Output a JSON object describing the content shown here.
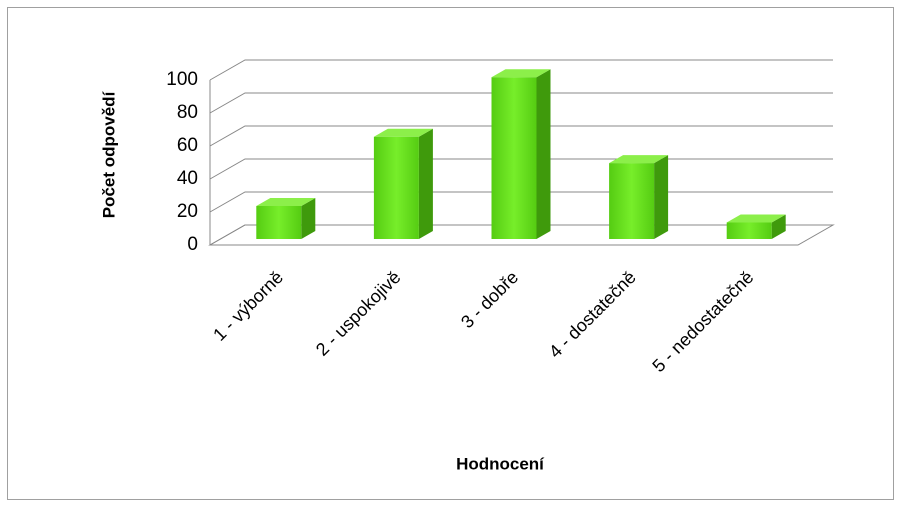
{
  "chart_data": {
    "type": "bar3d",
    "categories": [
      "1 - výborně",
      "2 - uspokojivě",
      "3 - dobře",
      "4 - dostatečně",
      "5 - nedostatečně"
    ],
    "values": [
      20,
      62,
      98,
      46,
      10
    ],
    "color": "#66dd1e",
    "xlabel": "Hodnocení",
    "ylabel": "Počet odpovědí",
    "ylim": [
      0,
      100
    ],
    "yticks": [
      0,
      20,
      40,
      60,
      80,
      100
    ],
    "grid": true
  }
}
